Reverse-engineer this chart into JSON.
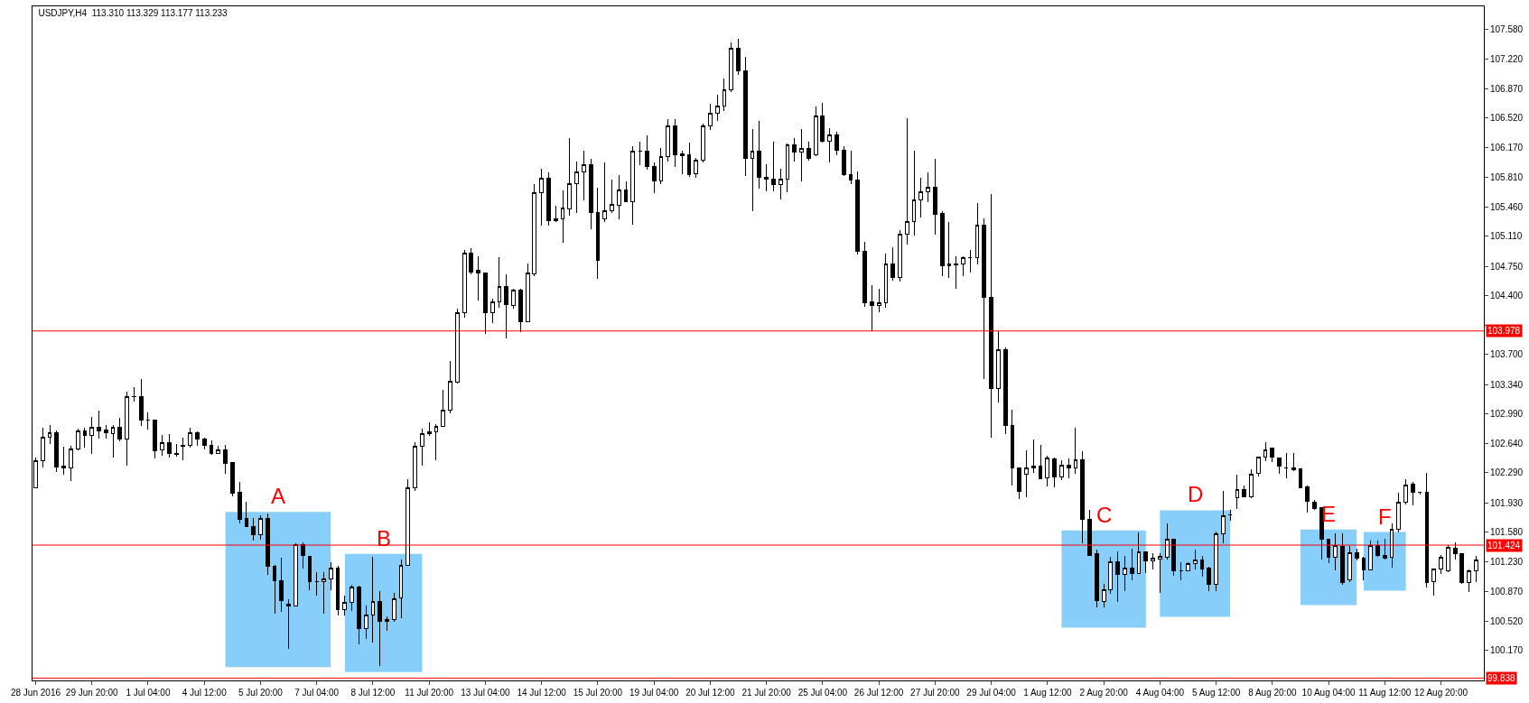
{
  "chart_data": {
    "type": "candlestick",
    "title": "USDJPY,H4  113.310 113.329 113.177 113.233",
    "color": "#000000",
    "categories": [
      "28 Jun 2016",
      null,
      null,
      null,
      null,
      null,
      null,
      null,
      "29 Jun 20:00",
      null,
      null,
      null,
      null,
      null,
      null,
      null,
      "1 Jul 04:00",
      null,
      null,
      null,
      null,
      null,
      null,
      null,
      "4 Jul 12:00",
      null,
      null,
      null,
      null,
      null,
      null,
      null,
      "5 Jul 20:00",
      null,
      null,
      null,
      null,
      null,
      null,
      null,
      "7 Jul 04:00",
      null,
      null,
      null,
      null,
      null,
      null,
      null,
      "8 Jul 12:00",
      null,
      null,
      null,
      null,
      null,
      null,
      null,
      "11 Jul 20:00",
      null,
      null,
      null,
      null,
      null,
      null,
      null,
      "13 Jul 04:00",
      null,
      null,
      null,
      null,
      null,
      null,
      null,
      "14 Jul 12:00",
      null,
      null,
      null,
      null,
      null,
      null,
      null,
      "15 Jul 20:00",
      null,
      null,
      null,
      null,
      null,
      null,
      null,
      "19 Jul 04:00",
      null,
      null,
      null,
      null,
      null,
      null,
      null,
      "20 Jul 12:00",
      null,
      null,
      null,
      null,
      null,
      null,
      null,
      "21 Jul 20:00",
      null,
      null,
      null,
      null,
      null,
      null,
      null,
      "25 Jul 04:00",
      null,
      null,
      null,
      null,
      null,
      null,
      null,
      "26 Jul 12:00",
      null,
      null,
      null,
      null,
      null,
      null,
      null,
      "27 Jul 20:00",
      null,
      null,
      null,
      null,
      null,
      null,
      null,
      "29 Jul 04:00",
      null,
      null,
      null,
      null,
      null,
      null,
      null,
      "1 Aug 12:00",
      null,
      null,
      null,
      null,
      null,
      null,
      null,
      "2 Aug 20:00",
      null,
      null,
      null,
      null,
      null,
      null,
      null,
      "4 Aug 04:00",
      null,
      null,
      null,
      null,
      null,
      null,
      null,
      "5 Aug 12:00",
      null,
      null,
      null,
      null,
      null,
      null,
      null,
      "8 Aug 20:00",
      null,
      null,
      null,
      null,
      null,
      null,
      null,
      "10 Aug 04:00",
      null,
      null,
      null,
      null,
      null,
      null,
      null,
      "11 Aug 12:00",
      null,
      null,
      null,
      null,
      null,
      null,
      null,
      "12 Aug 20:00",
      null,
      null,
      null,
      null,
      null
    ],
    "ohlc": [
      [
        102.11,
        102.47,
        102.1,
        102.43
      ],
      [
        102.43,
        102.82,
        102.35,
        102.71
      ],
      [
        102.71,
        102.86,
        102.63,
        102.76
      ],
      [
        102.76,
        102.79,
        102.3,
        102.36
      ],
      [
        102.37,
        102.6,
        102.26,
        102.35
      ],
      [
        102.35,
        102.61,
        102.19,
        102.57
      ],
      [
        102.57,
        102.81,
        102.55,
        102.79
      ],
      [
        102.79,
        102.82,
        102.59,
        102.73
      ],
      [
        102.73,
        102.95,
        102.51,
        102.83
      ],
      [
        102.83,
        103.03,
        102.69,
        102.79
      ],
      [
        102.8,
        102.86,
        102.69,
        102.76
      ],
      [
        102.75,
        102.86,
        102.47,
        102.83
      ],
      [
        102.83,
        102.94,
        102.66,
        102.69
      ],
      [
        102.69,
        103.25,
        102.37,
        103.2
      ],
      [
        103.2,
        103.31,
        103.14,
        103.19
      ],
      [
        103.2,
        103.41,
        102.84,
        102.91
      ],
      [
        102.91,
        103.01,
        102.8,
        102.91
      ],
      [
        102.91,
        102.92,
        102.46,
        102.55
      ],
      [
        102.56,
        102.74,
        102.49,
        102.65
      ],
      [
        102.65,
        102.75,
        102.47,
        102.52
      ],
      [
        102.52,
        102.63,
        102.48,
        102.51
      ],
      [
        102.6,
        102.7,
        102.44,
        102.61
      ],
      [
        102.61,
        102.82,
        102.59,
        102.76
      ],
      [
        102.76,
        102.78,
        102.61,
        102.69
      ],
      [
        102.69,
        102.71,
        102.57,
        102.61
      ],
      [
        102.61,
        102.67,
        102.5,
        102.52
      ],
      [
        102.52,
        102.61,
        102.51,
        102.56
      ],
      [
        102.56,
        102.62,
        102.27,
        102.4
      ],
      [
        102.41,
        102.42,
        102.01,
        102.04
      ],
      [
        102.05,
        102.18,
        101.68,
        101.73
      ],
      [
        101.74,
        101.94,
        101.65,
        101.65
      ],
      [
        101.65,
        101.75,
        101.48,
        101.55
      ],
      [
        101.55,
        101.78,
        101.49,
        101.74
      ],
      [
        101.74,
        101.8,
        101.07,
        101.17
      ],
      [
        101.17,
        101.19,
        100.61,
        101.0
      ],
      [
        101.0,
        101.27,
        100.63,
        100.76
      ],
      [
        100.72,
        100.78,
        100.19,
        100.7
      ],
      [
        100.7,
        101.45,
        100.69,
        101.43
      ],
      [
        101.43,
        101.46,
        101.14,
        101.3
      ],
      [
        101.29,
        101.3,
        100.89,
        100.99
      ],
      [
        100.99,
        101.1,
        100.82,
        100.99
      ],
      [
        100.99,
        101.1,
        100.61,
        101.02
      ],
      [
        101.02,
        101.22,
        100.89,
        101.15
      ],
      [
        101.15,
        101.18,
        100.59,
        100.66
      ],
      [
        100.66,
        100.82,
        100.59,
        100.74
      ],
      [
        100.74,
        100.95,
        100.64,
        100.92
      ],
      [
        100.92,
        100.94,
        100.24,
        100.43
      ],
      [
        100.43,
        100.7,
        100.31,
        100.59
      ],
      [
        100.59,
        101.28,
        100.26,
        100.75
      ],
      [
        100.75,
        100.88,
        99.98,
        100.52
      ],
      [
        100.52,
        100.57,
        100.4,
        100.54
      ],
      [
        100.54,
        100.85,
        100.51,
        100.78
      ],
      [
        100.79,
        101.25,
        100.55,
        101.18
      ],
      [
        101.18,
        102.21,
        101.18,
        102.11
      ],
      [
        102.11,
        102.65,
        102.07,
        102.6
      ],
      [
        102.6,
        102.81,
        102.37,
        102.75
      ],
      [
        102.75,
        102.89,
        102.73,
        102.78
      ],
      [
        102.78,
        102.87,
        102.44,
        102.84
      ],
      [
        102.84,
        103.28,
        102.83,
        103.03
      ],
      [
        103.03,
        103.62,
        103.0,
        103.38
      ],
      [
        103.37,
        104.24,
        103.35,
        104.2
      ],
      [
        104.2,
        104.94,
        104.14,
        104.91
      ],
      [
        104.91,
        104.97,
        104.65,
        104.68
      ],
      [
        104.7,
        104.87,
        104.34,
        104.67
      ],
      [
        104.67,
        104.68,
        103.94,
        104.2
      ],
      [
        104.2,
        104.36,
        104.07,
        104.32
      ],
      [
        104.32,
        104.86,
        104.26,
        104.51
      ],
      [
        104.51,
        104.65,
        103.89,
        104.29
      ],
      [
        104.28,
        104.48,
        104.24,
        104.47
      ],
      [
        104.47,
        104.48,
        103.96,
        104.09
      ],
      [
        104.09,
        104.78,
        104.08,
        104.67
      ],
      [
        104.66,
        105.73,
        104.63,
        105.63
      ],
      [
        105.63,
        105.91,
        105.23,
        105.8
      ],
      [
        105.8,
        105.87,
        105.24,
        105.29
      ],
      [
        105.29,
        105.47,
        105.28,
        105.31
      ],
      [
        105.31,
        105.65,
        105.03,
        105.44
      ],
      [
        105.43,
        106.28,
        105.35,
        105.74
      ],
      [
        105.74,
        106.0,
        105.39,
        105.88
      ],
      [
        105.88,
        106.13,
        105.54,
        105.96
      ],
      [
        105.96,
        106.03,
        105.19,
        105.39
      ],
      [
        105.39,
        105.69,
        104.6,
        104.82
      ],
      [
        105.32,
        105.99,
        105.28,
        105.41
      ],
      [
        105.41,
        105.78,
        105.39,
        105.49
      ],
      [
        105.48,
        105.84,
        105.31,
        105.66
      ],
      [
        105.66,
        105.76,
        105.51,
        105.52
      ],
      [
        105.52,
        106.18,
        105.25,
        106.12
      ],
      [
        106.12,
        106.24,
        105.96,
        106.12
      ],
      [
        106.12,
        106.31,
        105.9,
        105.94
      ],
      [
        105.94,
        105.99,
        105.62,
        105.77
      ],
      [
        105.77,
        106.16,
        105.73,
        106.06
      ],
      [
        106.06,
        106.51,
        106.0,
        106.42
      ],
      [
        106.42,
        106.51,
        105.93,
        106.08
      ],
      [
        106.07,
        106.13,
        105.85,
        106.09
      ],
      [
        106.08,
        106.23,
        105.82,
        105.84
      ],
      [
        105.85,
        106.04,
        105.8,
        106.01
      ],
      [
        106.01,
        106.45,
        105.99,
        106.42
      ],
      [
        106.42,
        106.69,
        106.38,
        106.57
      ],
      [
        106.57,
        106.79,
        106.48,
        106.66
      ],
      [
        106.66,
        106.99,
        106.6,
        106.85
      ],
      [
        106.85,
        107.42,
        106.83,
        107.35
      ],
      [
        107.35,
        107.46,
        107.03,
        107.08
      ],
      [
        107.08,
        107.25,
        105.83,
        106.04
      ],
      [
        106.04,
        106.39,
        105.41,
        106.12
      ],
      [
        106.12,
        106.48,
        105.68,
        105.81
      ],
      [
        105.81,
        105.97,
        105.64,
        105.79
      ],
      [
        105.79,
        106.24,
        105.64,
        105.72
      ],
      [
        105.72,
        105.91,
        105.55,
        105.79
      ],
      [
        105.79,
        106.21,
        105.63,
        106.2
      ],
      [
        106.2,
        106.28,
        106.0,
        106.11
      ],
      [
        106.11,
        106.39,
        105.76,
        106.16
      ],
      [
        106.16,
        106.24,
        106.01,
        106.04
      ],
      [
        106.08,
        106.65,
        106.06,
        106.54
      ],
      [
        106.54,
        106.7,
        106.22,
        106.24
      ],
      [
        106.24,
        106.4,
        105.99,
        106.32
      ],
      [
        106.32,
        106.35,
        106.07,
        106.13
      ],
      [
        106.13,
        106.18,
        105.83,
        105.84
      ],
      [
        105.84,
        106.13,
        105.73,
        105.78
      ],
      [
        105.78,
        105.88,
        104.89,
        104.93
      ],
      [
        104.93,
        105.04,
        104.27,
        104.31
      ],
      [
        104.32,
        104.52,
        103.98,
        104.28
      ],
      [
        104.28,
        104.48,
        104.2,
        104.31
      ],
      [
        104.31,
        104.9,
        104.25,
        104.78
      ],
      [
        104.78,
        104.98,
        104.58,
        104.62
      ],
      [
        104.62,
        105.18,
        104.57,
        105.13
      ],
      [
        105.13,
        106.52,
        105.01,
        105.28
      ],
      [
        105.28,
        106.13,
        105.12,
        105.54
      ],
      [
        105.54,
        105.81,
        105.33,
        105.64
      ],
      [
        105.64,
        105.87,
        105.51,
        105.69
      ],
      [
        105.69,
        106.03,
        105.13,
        105.37
      ],
      [
        105.38,
        105.41,
        104.63,
        104.76
      ],
      [
        104.78,
        105.28,
        104.61,
        104.76
      ],
      [
        104.77,
        104.87,
        104.48,
        104.78
      ],
      [
        104.78,
        104.87,
        104.63,
        104.85
      ],
      [
        104.85,
        104.94,
        104.67,
        104.85
      ],
      [
        104.85,
        105.5,
        104.77,
        105.24
      ],
      [
        105.24,
        105.32,
        103.4,
        104.38
      ],
      [
        104.38,
        105.61,
        102.71,
        103.29
      ],
      [
        103.29,
        103.97,
        103.13,
        103.75
      ],
      [
        103.75,
        103.78,
        102.75,
        102.85
      ],
      [
        102.85,
        103.04,
        102.13,
        102.35
      ],
      [
        102.35,
        102.35,
        101.97,
        102.06
      ],
      [
        102.27,
        102.55,
        101.99,
        102.35
      ],
      [
        102.35,
        102.68,
        102.29,
        102.37
      ],
      [
        102.37,
        102.62,
        102.21,
        102.22
      ],
      [
        102.23,
        102.49,
        102.12,
        102.46
      ],
      [
        102.45,
        102.47,
        102.11,
        102.24
      ],
      [
        102.24,
        102.44,
        102.2,
        102.38
      ],
      [
        102.38,
        102.46,
        102.22,
        102.34
      ],
      [
        102.34,
        102.82,
        102.27,
        102.44
      ],
      [
        102.44,
        102.54,
        101.45,
        101.73
      ],
      [
        101.73,
        101.84,
        101.29,
        101.3
      ],
      [
        101.32,
        101.37,
        100.68,
        100.76
      ],
      [
        100.75,
        100.96,
        100.68,
        100.89
      ],
      [
        100.89,
        101.28,
        100.84,
        101.23
      ],
      [
        101.23,
        101.35,
        100.75,
        101.08
      ],
      [
        101.07,
        101.3,
        100.88,
        101.15
      ],
      [
        101.15,
        101.38,
        101.01,
        101.09
      ],
      [
        101.09,
        101.58,
        101.08,
        101.34
      ],
      [
        101.34,
        101.35,
        101.09,
        101.24
      ],
      [
        101.24,
        101.33,
        101.13,
        101.27
      ],
      [
        101.26,
        101.33,
        100.85,
        101.29
      ],
      [
        101.28,
        101.68,
        101.25,
        101.49
      ],
      [
        101.49,
        101.49,
        101.06,
        101.12
      ],
      [
        101.12,
        101.22,
        101.0,
        101.12
      ],
      [
        101.12,
        101.22,
        101.12,
        101.2
      ],
      [
        101.2,
        101.37,
        101.13,
        101.25
      ],
      [
        101.25,
        101.3,
        101.05,
        101.14
      ],
      [
        101.15,
        101.17,
        100.88,
        100.96
      ],
      [
        100.96,
        101.59,
        100.88,
        101.56
      ],
      [
        101.56,
        102.07,
        101.45,
        101.77
      ],
      [
        101.78,
        101.84,
        101.71,
        101.78
      ],
      [
        101.99,
        102.26,
        101.85,
        102.09
      ],
      [
        102.09,
        102.14,
        101.99,
        102.0
      ],
      [
        102.0,
        102.33,
        101.98,
        102.27
      ],
      [
        102.28,
        102.48,
        102.24,
        102.47
      ],
      [
        102.47,
        102.65,
        102.43,
        102.56
      ],
      [
        102.58,
        102.59,
        102.42,
        102.47
      ],
      [
        102.46,
        102.47,
        102.27,
        102.37
      ],
      [
        102.35,
        102.52,
        102.22,
        102.35
      ],
      [
        102.35,
        102.52,
        102.31,
        102.32
      ],
      [
        102.33,
        102.34,
        102.1,
        102.11
      ],
      [
        102.12,
        102.14,
        101.81,
        101.95
      ],
      [
        101.94,
        101.96,
        101.84,
        101.86
      ],
      [
        101.87,
        101.87,
        101.25,
        101.49
      ],
      [
        101.49,
        101.5,
        101.21,
        101.28
      ],
      [
        101.28,
        101.56,
        101.12,
        101.42
      ],
      [
        101.41,
        101.56,
        100.95,
        100.98
      ],
      [
        101.01,
        101.41,
        100.98,
        101.33
      ],
      [
        101.33,
        101.38,
        101.24,
        101.27
      ],
      [
        101.27,
        101.28,
        101.01,
        101.13
      ],
      [
        101.13,
        101.48,
        101.12,
        101.42
      ],
      [
        101.42,
        101.48,
        101.28,
        101.3
      ],
      [
        101.3,
        101.5,
        101.25,
        101.27
      ],
      [
        101.28,
        101.68,
        101.16,
        101.61
      ],
      [
        101.61,
        102.05,
        101.57,
        101.94
      ],
      [
        101.94,
        102.21,
        101.91,
        102.14
      ],
      [
        102.15,
        102.18,
        101.9,
        102.05
      ],
      [
        102.05,
        102.06,
        102.03,
        102.05
      ],
      [
        102.05,
        102.29,
        100.92,
        100.98
      ],
      [
        100.99,
        101.15,
        100.82,
        101.14
      ],
      [
        101.14,
        101.31,
        101.08,
        101.28
      ],
      [
        101.12,
        101.42,
        101.1,
        101.4
      ],
      [
        101.39,
        101.46,
        101.25,
        101.32
      ],
      [
        101.32,
        101.33,
        100.96,
        100.98
      ],
      [
        100.98,
        101.13,
        100.86,
        101.12
      ],
      [
        101.12,
        101.29,
        100.98,
        101.25
      ]
    ],
    "ylim": [
      99.81,
      107.85
    ],
    "yticks": [
      {
        "value": 100.17,
        "label": "100.170"
      },
      {
        "value": 100.52,
        "label": "100.520"
      },
      {
        "value": 100.87,
        "label": "100.870"
      },
      {
        "value": 101.23,
        "label": "101.230"
      },
      {
        "value": 101.58,
        "label": "101.580"
      },
      {
        "value": 101.93,
        "label": "101.930"
      },
      {
        "value": 102.29,
        "label": "102.290"
      },
      {
        "value": 102.64,
        "label": "102.640"
      },
      {
        "value": 102.99,
        "label": "102.990"
      },
      {
        "value": 103.34,
        "label": "103.340"
      },
      {
        "value": 103.7,
        "label": "103.700"
      },
      {
        "value": 104.05,
        "label": null
      },
      {
        "value": 104.4,
        "label": "104.400"
      },
      {
        "value": 104.75,
        "label": "104.750"
      },
      {
        "value": 105.11,
        "label": "105.110"
      },
      {
        "value": 105.46,
        "label": "105.460"
      },
      {
        "value": 105.81,
        "label": "105.810"
      },
      {
        "value": 106.17,
        "label": "106.170"
      },
      {
        "value": 106.52,
        "label": "106.520"
      },
      {
        "value": 106.87,
        "label": "106.870"
      },
      {
        "value": 107.22,
        "label": "107.220"
      },
      {
        "value": 107.58,
        "label": "107.580"
      }
    ],
    "ref_lines": [
      {
        "axis": "y",
        "value": 103.978,
        "label": "103.978",
        "color": "#ff0000"
      },
      {
        "axis": "y",
        "value": 101.424,
        "label": "101.424",
        "color": "#ff0000"
      },
      {
        "axis": "y",
        "value": 99.838,
        "label": "99.838",
        "color": "#ff0000"
      }
    ],
    "annotations": [
      "A",
      "B",
      "C",
      "D",
      "E",
      "F"
    ]
  }
}
